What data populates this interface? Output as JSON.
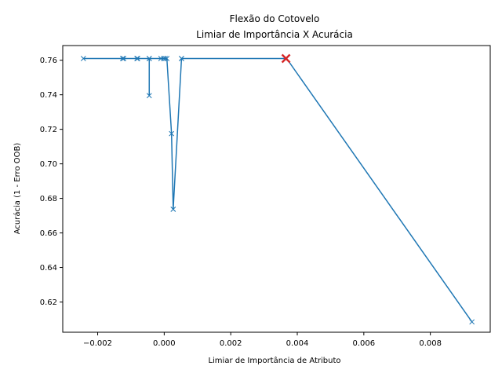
{
  "colors": {
    "series_line": "#1f77b4",
    "highlight_marker": "#d62728",
    "axes": "#000000",
    "background": "#ffffff"
  },
  "chart_data": {
    "type": "line",
    "title": "Flexão do Cotovelo",
    "subtitle": "Limiar de Importância X Acurácia",
    "xlabel": "Limiar de Importância de Atributo",
    "ylabel": "Acurácia (1 - Erro OOB)",
    "xlim": [
      -0.00305,
      0.0098
    ],
    "ylim": [
      0.6025,
      0.7685
    ],
    "grid": false,
    "marker": "x",
    "x_ticks": [
      -0.002,
      0.0,
      0.002,
      0.004,
      0.006,
      0.008
    ],
    "x_tick_labels": [
      "−0.002",
      "0.000",
      "0.002",
      "0.004",
      "0.006",
      "0.008"
    ],
    "y_ticks": [
      0.62,
      0.64,
      0.66,
      0.68,
      0.7,
      0.72,
      0.74,
      0.76
    ],
    "y_tick_labels": [
      "0.62",
      "0.64",
      "0.66",
      "0.68",
      "0.70",
      "0.72",
      "0.74",
      "0.76"
    ],
    "series": [
      {
        "x": [
          -0.00243,
          -0.00125,
          -0.00122,
          -0.00082,
          -0.0008,
          -0.00045,
          -0.00045,
          -0.00045,
          -0.0001,
          -2e-05,
          3e-05,
          8e-05,
          0.00022,
          0.00027,
          0.00027,
          0.00052,
          0.00052,
          0.00365,
          0.00368,
          0.00925
        ],
        "y": [
          0.761,
          0.761,
          0.761,
          0.761,
          0.761,
          0.761,
          0.7395,
          0.761,
          0.761,
          0.761,
          0.761,
          0.761,
          0.7175,
          0.6737,
          0.6737,
          0.761,
          0.761,
          0.761,
          0.761,
          0.6085
        ]
      }
    ],
    "highlight": {
      "x": 0.00366,
      "y": 0.761
    }
  }
}
